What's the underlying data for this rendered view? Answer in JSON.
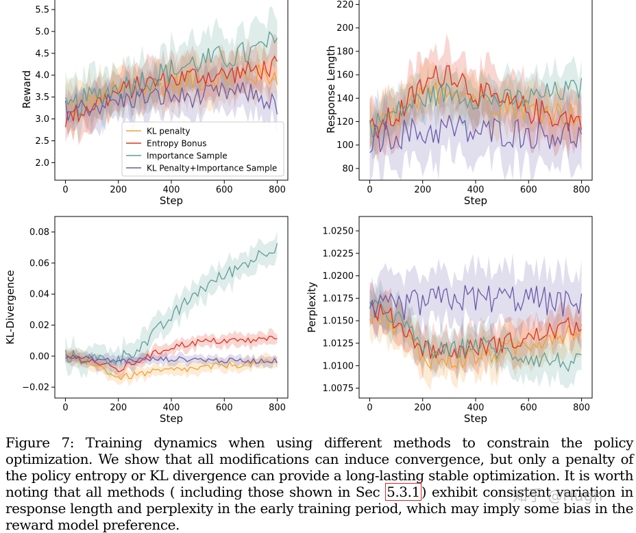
{
  "colors": {
    "kl_penalty": "#f0a030",
    "entropy_bonus": "#e0301e",
    "importance_sample": "#5a9e96",
    "kl_importance": "#6a5aa8"
  },
  "legend": [
    {
      "key": "kl_penalty",
      "label": "KL penalty"
    },
    {
      "key": "entropy_bonus",
      "label": "Entropy Bonus"
    },
    {
      "key": "importance_sample",
      "label": "Importance Sample"
    },
    {
      "key": "kl_importance",
      "label": "KL Penalty+Importance Sample"
    }
  ],
  "chart_data": [
    {
      "id": "reward",
      "type": "line",
      "xlabel": "Step",
      "ylabel": "Reward",
      "xlim": [
        -40,
        840
      ],
      "ylim": [
        1.6,
        5.75
      ],
      "xticks": [
        0,
        200,
        400,
        600,
        800
      ],
      "yticks": [
        2.0,
        2.5,
        3.0,
        3.5,
        4.0,
        4.5,
        5.0,
        5.5
      ],
      "ydecimals": 1,
      "legend_position": "lower-center",
      "x": [
        0,
        100,
        200,
        300,
        400,
        500,
        600,
        700,
        800
      ],
      "series": [
        {
          "key": "kl_penalty",
          "values": [
            3.2,
            3.4,
            3.6,
            3.7,
            3.8,
            3.9,
            3.9,
            4.0,
            4.0
          ],
          "band": 0.5
        },
        {
          "key": "entropy_bonus",
          "values": [
            3.0,
            3.3,
            3.6,
            3.8,
            3.9,
            4.0,
            4.0,
            4.1,
            4.2
          ],
          "band": 0.45
        },
        {
          "key": "importance_sample",
          "values": [
            3.2,
            3.5,
            3.7,
            3.9,
            4.1,
            4.3,
            4.4,
            4.5,
            4.8
          ],
          "band": 0.55
        },
        {
          "key": "kl_importance",
          "values": [
            3.2,
            3.3,
            3.4,
            3.5,
            3.5,
            3.5,
            3.6,
            3.6,
            3.3
          ],
          "band": 0.45
        }
      ]
    },
    {
      "id": "response_length",
      "type": "line",
      "xlabel": "Step",
      "ylabel": "Response Length",
      "xlim": [
        -40,
        840
      ],
      "ylim": [
        70,
        225
      ],
      "xticks": [
        0,
        200,
        400,
        600,
        800
      ],
      "yticks": [
        80,
        100,
        120,
        140,
        160,
        180,
        200,
        220
      ],
      "ydecimals": 0,
      "x": [
        0,
        100,
        200,
        300,
        400,
        500,
        600,
        700,
        800
      ],
      "series": [
        {
          "key": "kl_penalty",
          "values": [
            110,
            125,
            140,
            150,
            140,
            135,
            130,
            128,
            125
          ],
          "band": 20
        },
        {
          "key": "entropy_bonus",
          "values": [
            110,
            125,
            150,
            165,
            145,
            135,
            130,
            125,
            120
          ],
          "band": 22
        },
        {
          "key": "importance_sample",
          "values": [
            115,
            128,
            140,
            145,
            140,
            138,
            140,
            145,
            148
          ],
          "band": 18
        },
        {
          "key": "kl_importance",
          "values": [
            105,
            110,
            110,
            115,
            110,
            112,
            110,
            110,
            108
          ],
          "band": 25
        }
      ]
    },
    {
      "id": "kl_divergence",
      "type": "line",
      "xlabel": "Step",
      "ylabel": "KL-Divergence",
      "xlim": [
        -40,
        840
      ],
      "ylim": [
        -0.027,
        0.09
      ],
      "xticks": [
        0,
        200,
        400,
        600,
        800
      ],
      "yticks": [
        -0.02,
        0.0,
        0.02,
        0.04,
        0.06,
        0.08
      ],
      "ydecimals": 2,
      "x": [
        0,
        100,
        200,
        300,
        400,
        500,
        600,
        700,
        800
      ],
      "series": [
        {
          "key": "kl_penalty",
          "values": [
            0.0,
            -0.004,
            -0.014,
            -0.011,
            -0.009,
            -0.008,
            -0.006,
            -0.005,
            -0.004
          ],
          "band": 0.004
        },
        {
          "key": "entropy_bonus",
          "values": [
            0.0,
            -0.003,
            -0.009,
            -0.001,
            0.006,
            0.009,
            0.01,
            0.01,
            0.012
          ],
          "band": 0.004
        },
        {
          "key": "importance_sample",
          "values": [
            0.0,
            -0.002,
            -0.002,
            0.008,
            0.025,
            0.042,
            0.052,
            0.062,
            0.072
          ],
          "band": 0.008
        },
        {
          "key": "kl_importance",
          "values": [
            0.0,
            -0.002,
            -0.003,
            -0.002,
            -0.002,
            -0.002,
            -0.003,
            -0.003,
            -0.003
          ],
          "band": 0.003
        }
      ]
    },
    {
      "id": "perplexity",
      "type": "line",
      "xlabel": "Step",
      "ylabel": "Perplexity",
      "xlim": [
        -40,
        840
      ],
      "ylim": [
        1.0064,
        1.0266
      ],
      "xticks": [
        0,
        200,
        400,
        600,
        800
      ],
      "yticks": [
        1.0075,
        1.01,
        1.0125,
        1.015,
        1.0175,
        1.02,
        1.0225,
        1.025
      ],
      "ydecimals": 4,
      "x": [
        0,
        100,
        200,
        300,
        400,
        500,
        600,
        700,
        800
      ],
      "series": [
        {
          "key": "kl_penalty",
          "values": [
            1.016,
            1.0145,
            1.011,
            1.0105,
            1.011,
            1.0115,
            1.0125,
            1.0135,
            1.014
          ],
          "band": 0.0022
        },
        {
          "key": "entropy_bonus",
          "values": [
            1.0165,
            1.015,
            1.012,
            1.0115,
            1.012,
            1.0125,
            1.013,
            1.014,
            1.0145
          ],
          "band": 0.002
        },
        {
          "key": "importance_sample",
          "values": [
            1.0165,
            1.0155,
            1.012,
            1.0115,
            1.0125,
            1.0115,
            1.011,
            1.0105,
            1.0102
          ],
          "band": 0.002
        },
        {
          "key": "kl_importance",
          "values": [
            1.016,
            1.0165,
            1.017,
            1.0175,
            1.0175,
            1.0175,
            1.0175,
            1.017,
            1.0165
          ],
          "band": 0.003
        }
      ]
    }
  ],
  "caption": {
    "part1": "Figure 7:  Training dynamics when using different methods to constrain the policy optimization. We show that all modifications can induce convergence, but only a penalty of the policy entropy or KL divergence can provide a long-lasting stable optimization. It is worth noting that all methods ( including those shown in Sec ",
    "ref": "5.3.1",
    "part2": ") exhibit consistent variation in response length and perplexity in the early training period, which may imply some bias in the reward model preference."
  },
  "watermark": "知乎 @Hugh"
}
